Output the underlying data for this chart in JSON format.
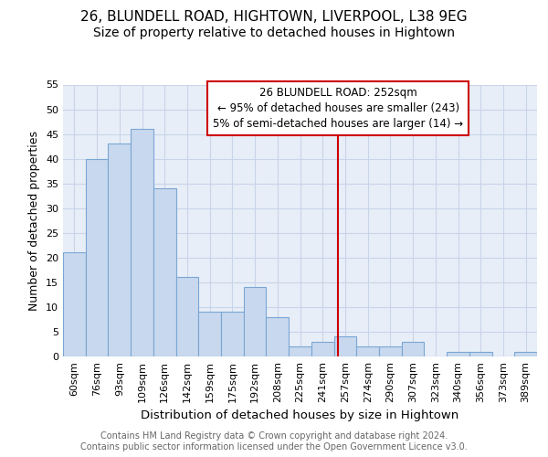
{
  "title": "26, BLUNDELL ROAD, HIGHTOWN, LIVERPOOL, L38 9EG",
  "subtitle": "Size of property relative to detached houses in Hightown",
  "xlabel": "Distribution of detached houses by size in Hightown",
  "ylabel": "Number of detached properties",
  "footer_line1": "Contains HM Land Registry data © Crown copyright and database right 2024.",
  "footer_line2": "Contains public sector information licensed under the Open Government Licence v3.0.",
  "categories": [
    "60sqm",
    "76sqm",
    "93sqm",
    "109sqm",
    "126sqm",
    "142sqm",
    "159sqm",
    "175sqm",
    "192sqm",
    "208sqm",
    "225sqm",
    "241sqm",
    "257sqm",
    "274sqm",
    "290sqm",
    "307sqm",
    "323sqm",
    "340sqm",
    "356sqm",
    "373sqm",
    "389sqm"
  ],
  "values": [
    21,
    40,
    43,
    46,
    34,
    16,
    9,
    9,
    14,
    8,
    2,
    3,
    4,
    2,
    2,
    3,
    0,
    1,
    1,
    0,
    1
  ],
  "bar_color": "#c8d8ee",
  "bar_edge_color": "#7aa6d4",
  "grid_color": "#c8d4e8",
  "background_color": "#e8eef8",
  "annotation_text": "26 BLUNDELL ROAD: 252sqm\n← 95% of detached houses are smaller (243)\n5% of semi-detached houses are larger (14) →",
  "annotation_box_edgecolor": "#cc0000",
  "red_line_color": "#cc0000",
  "ylim": [
    0,
    55
  ],
  "yticks": [
    0,
    5,
    10,
    15,
    20,
    25,
    30,
    35,
    40,
    45,
    50,
    55
  ],
  "title_fontsize": 11,
  "subtitle_fontsize": 10,
  "ylabel_fontsize": 9,
  "xlabel_fontsize": 9.5,
  "tick_fontsize": 8,
  "annot_fontsize": 8.5,
  "footer_fontsize": 7
}
